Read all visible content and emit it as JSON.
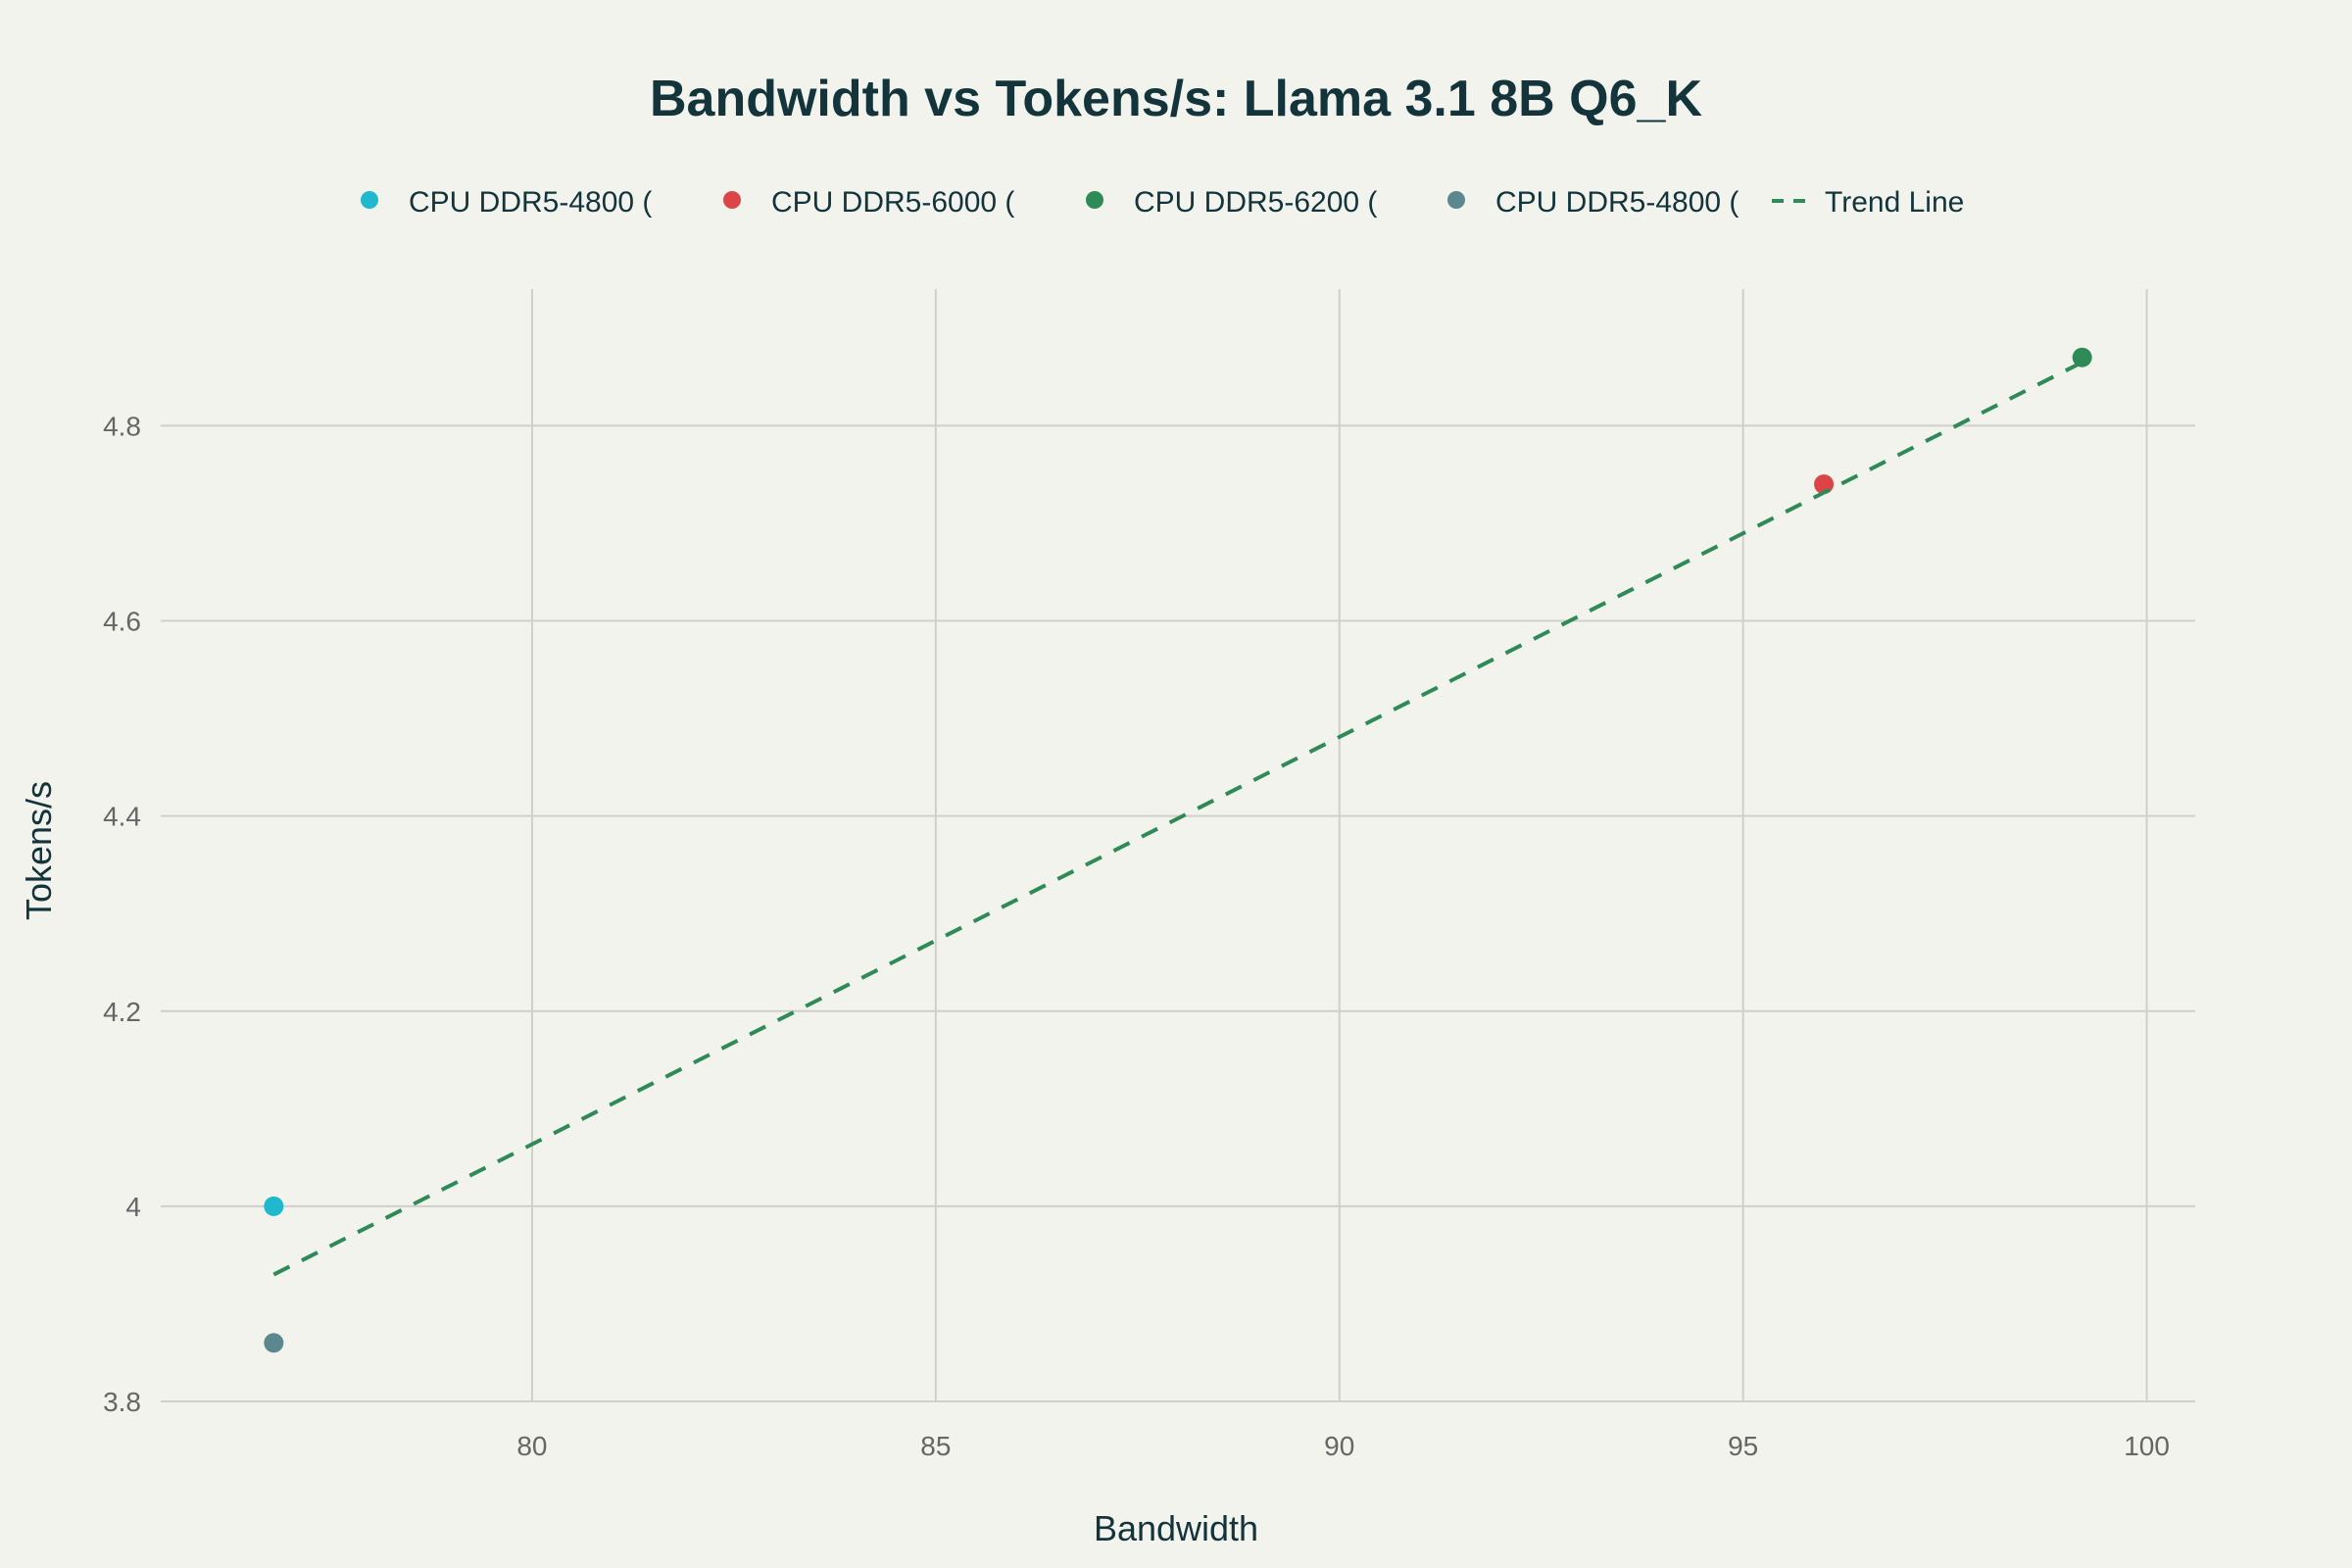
{
  "chart_data": {
    "type": "scatter",
    "title": "Bandwidth vs Tokens/s: Llama 3.1 8B Q6_K",
    "xlabel": "Bandwidth",
    "ylabel": "Tokens/s",
    "xlim": [
      75.4,
      100.6
    ],
    "ylim": [
      3.8,
      4.94
    ],
    "xticks": [
      80,
      85,
      90,
      95,
      100
    ],
    "yticks": [
      3.8,
      4,
      4.2,
      4.4,
      4.6,
      4.8
    ],
    "ytick_labels": [
      "3.8",
      "4",
      "4.2",
      "4.4",
      "4.6",
      "4.8"
    ],
    "grid": true,
    "legend_position": "top",
    "series": [
      {
        "name": "CPU DDR5-4800 (",
        "color": "#1fb8cd",
        "x": [
          76.8
        ],
        "y": [
          4.0
        ]
      },
      {
        "name": "CPU DDR5-6000 (",
        "color": "#db4545",
        "x": [
          96.0
        ],
        "y": [
          4.74
        ]
      },
      {
        "name": "CPU DDR5-6200 (",
        "color": "#2e8b57",
        "x": [
          99.2
        ],
        "y": [
          4.87
        ]
      },
      {
        "name": "CPU DDR5-4800 (",
        "color": "#5d878f",
        "x": [
          76.8
        ],
        "y": [
          3.86
        ]
      },
      {
        "name": "Trend Line",
        "color": "#2e8b57",
        "line": "dash",
        "x": [
          76.8,
          99.2
        ],
        "y": [
          3.93,
          4.865
        ]
      }
    ]
  }
}
